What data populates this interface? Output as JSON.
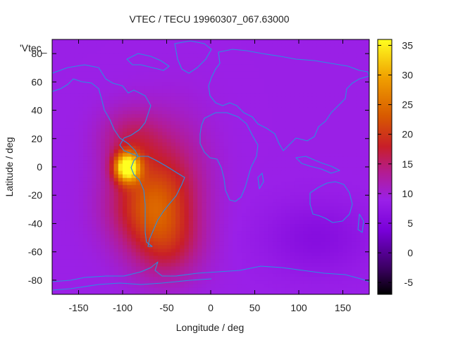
{
  "chart_data": {
    "type": "heatmap",
    "title": "VTEC / TECU 19960307_067.63000",
    "series_label": "'Vtec_",
    "xlabel": "Longitude / deg",
    "ylabel": "Latitude / deg",
    "xlim": [
      -180,
      180
    ],
    "ylim": [
      -90,
      90
    ],
    "x_ticks": [
      -150,
      -100,
      -50,
      0,
      50,
      100,
      150
    ],
    "y_ticks": [
      -80,
      -60,
      -40,
      -20,
      0,
      20,
      40,
      60,
      80
    ],
    "colorbar": {
      "range": [
        -7,
        36
      ],
      "ticks": [
        -5,
        0,
        5,
        10,
        15,
        20,
        25,
        30,
        35
      ],
      "palette": [
        "#000000",
        "#3a0060",
        "#7800d8",
        "#9a20e8",
        "#b41c90",
        "#c81e28",
        "#d85a00",
        "#f0a000",
        "#ffff20"
      ]
    },
    "grid": false,
    "estimated_peak": {
      "lon": -95,
      "lat": 0,
      "value": 35
    },
    "background_value": 9,
    "coastlines": true
  }
}
